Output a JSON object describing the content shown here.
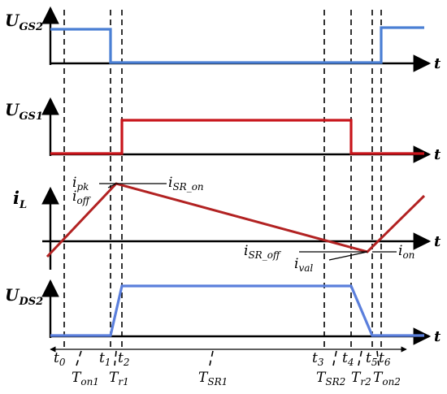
{
  "colors": {
    "ugs2": "#4a7fd4",
    "ugs1": "#c8141a",
    "il": "#b22222",
    "uds2": "#5b7fdc",
    "axis": "#000000"
  },
  "traces": {
    "ugs2": {
      "label_main": "U",
      "label_sub": "GS2"
    },
    "ugs1": {
      "label_main": "U",
      "label_sub": "GS1"
    },
    "il": {
      "label_main": "i",
      "label_sub": "L"
    },
    "uds2": {
      "label_main": "U",
      "label_sub": "DS2"
    }
  },
  "axis_label": "t",
  "current_labels": {
    "ipk": {
      "main": "i",
      "sub": "pk"
    },
    "ioff": {
      "main": "i",
      "sub": "off"
    },
    "isr_on": {
      "main": "i",
      "sub": "SR_on"
    },
    "isr_off": {
      "main": "i",
      "sub": "SR_off"
    },
    "ival": {
      "main": "i",
      "sub": "val"
    },
    "ion": {
      "main": "i",
      "sub": "on"
    }
  },
  "time_instants": [
    {
      "main": "t",
      "sub": "0"
    },
    {
      "main": "t",
      "sub": "1"
    },
    {
      "main": "t",
      "sub": "2"
    },
    {
      "main": "t",
      "sub": "3"
    },
    {
      "main": "t",
      "sub": "4"
    },
    {
      "main": "t",
      "sub": "5"
    },
    {
      "main": "t",
      "sub": "6"
    }
  ],
  "intervals": [
    {
      "main": "T",
      "sub": "on1"
    },
    {
      "main": "T",
      "sub": "r1"
    },
    {
      "main": "T",
      "sub": "SR1"
    },
    {
      "main": "T",
      "sub": "SR2"
    },
    {
      "main": "T",
      "sub": "r2"
    },
    {
      "main": "T",
      "sub": "on2"
    }
  ]
}
